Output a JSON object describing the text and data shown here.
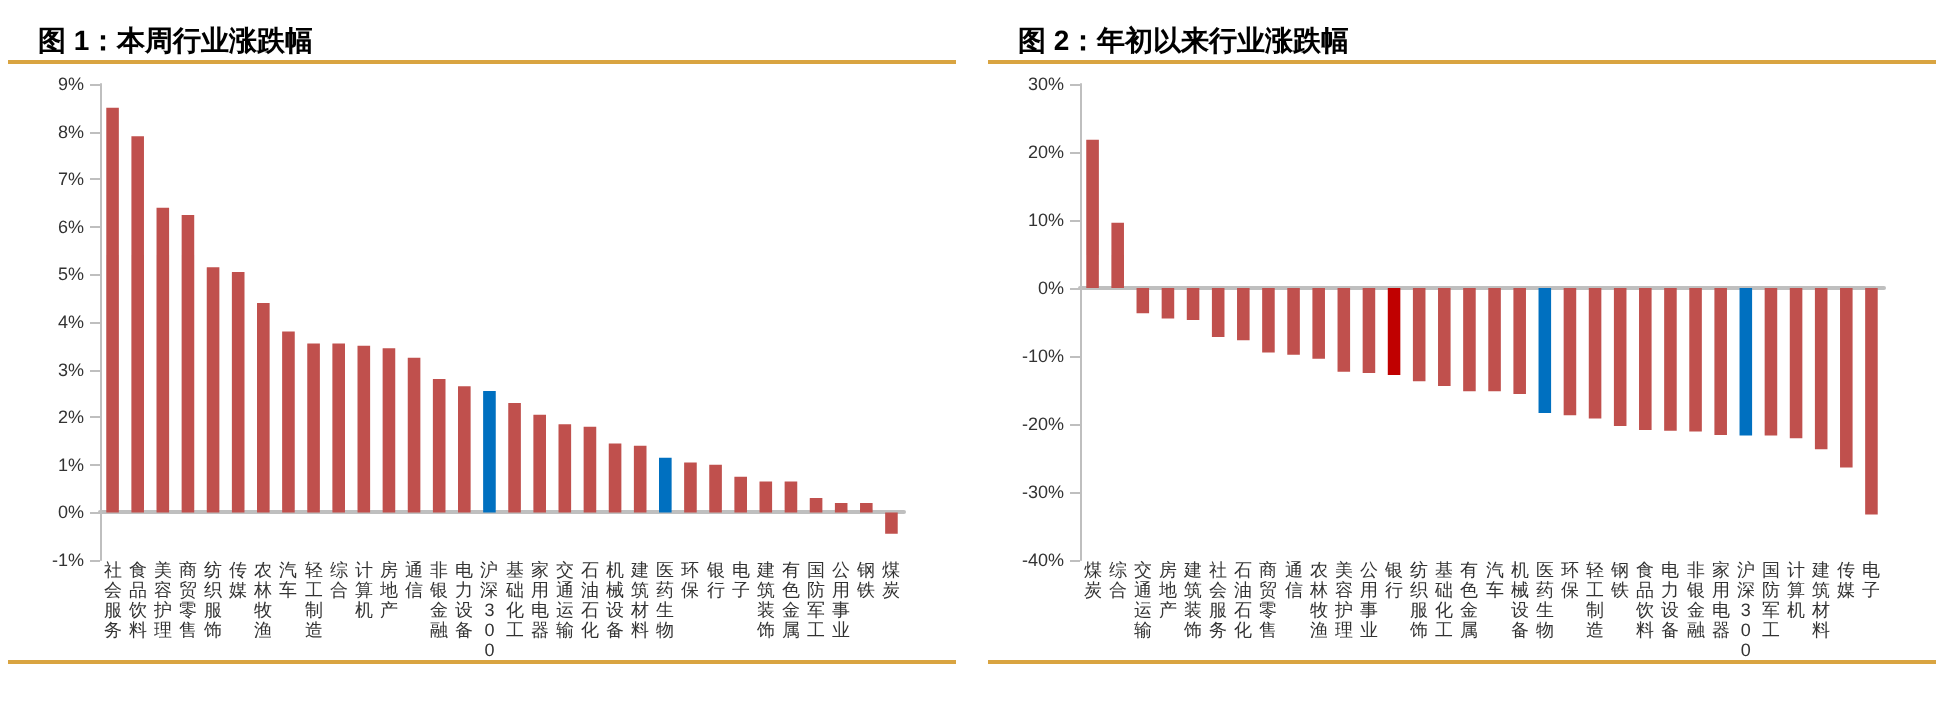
{
  "chart_data": [
    {
      "type": "bar",
      "title": "图 1：本周行业涨跌幅",
      "categories": [
        "社会服务",
        "食品饮料",
        "美容护理",
        "商贸零售",
        "纺织服饰",
        "传媒",
        "农林牧渔",
        "汽车",
        "轻工制造",
        "综合",
        "计算机",
        "房地产",
        "通信",
        "非银金融",
        "电力设备",
        "沪深300",
        "基础化工",
        "家用电器",
        "交通运输",
        "石油石化",
        "机械设备",
        "建筑材料",
        "医药生物",
        "环保",
        "银行",
        "电子",
        "建筑装饰",
        "有色金属",
        "国防军工",
        "公用事业",
        "钢铁",
        "煤炭"
      ],
      "values": [
        8.5,
        7.9,
        6.4,
        6.25,
        5.15,
        5.05,
        4.4,
        3.8,
        3.55,
        3.55,
        3.5,
        3.45,
        3.25,
        2.8,
        2.65,
        2.55,
        2.3,
        2.05,
        1.85,
        1.8,
        1.45,
        1.4,
        1.15,
        1.05,
        1.0,
        0.75,
        0.65,
        0.65,
        0.3,
        0.2,
        0.2,
        -0.45
      ],
      "colors": [
        "#c0504d",
        "#c0504d",
        "#c0504d",
        "#c0504d",
        "#c0504d",
        "#c0504d",
        "#c0504d",
        "#c0504d",
        "#c0504d",
        "#c0504d",
        "#c0504d",
        "#c0504d",
        "#c0504d",
        "#c0504d",
        "#c0504d",
        "#0070c0",
        "#c0504d",
        "#c0504d",
        "#c0504d",
        "#c0504d",
        "#c0504d",
        "#c0504d",
        "#0070c0",
        "#c0504d",
        "#c0504d",
        "#c0504d",
        "#c0504d",
        "#c0504d",
        "#c0504d",
        "#c0504d",
        "#c0504d",
        "#c0504d"
      ],
      "ylim": [
        -1,
        9
      ],
      "yticks": [
        {
          "value": -1,
          "label": "-1%"
        },
        {
          "value": 0,
          "label": "0%"
        },
        {
          "value": 1,
          "label": "1%"
        },
        {
          "value": 2,
          "label": "2%"
        },
        {
          "value": 3,
          "label": "3%"
        },
        {
          "value": 4,
          "label": "4%"
        },
        {
          "value": 5,
          "label": "5%"
        },
        {
          "value": 6,
          "label": "6%"
        },
        {
          "value": 7,
          "label": "7%"
        },
        {
          "value": 8,
          "label": "8%"
        },
        {
          "value": 9,
          "label": "9%"
        }
      ]
    },
    {
      "type": "bar",
      "title": "图 2：年初以来行业涨跌幅",
      "categories": [
        "煤炭",
        "综合",
        "交通运输",
        "房地产",
        "建筑装饰",
        "社会服务",
        "石油石化",
        "商贸零售",
        "通信",
        "农林牧渔",
        "美容护理",
        "公用事业",
        "银行",
        "纺织服饰",
        "基础化工",
        "有色金属",
        "汽车",
        "机械设备",
        "医药生物",
        "环保",
        "轻工制造",
        "钢铁",
        "食品饮料",
        "电力设备",
        "非银金融",
        "家用电器",
        "沪深300",
        "国防军工",
        "计算机",
        "建筑材料",
        "传媒",
        "电子"
      ],
      "values": [
        21.8,
        9.6,
        -3.7,
        -4.5,
        -4.7,
        -7.2,
        -7.7,
        -9.5,
        -9.8,
        -10.4,
        -12.3,
        -12.5,
        -12.8,
        -13.7,
        -14.4,
        -15.2,
        -15.2,
        -15.6,
        -18.4,
        -18.7,
        -19.2,
        -20.3,
        -20.9,
        -21.0,
        -21.1,
        -21.6,
        -21.7,
        -21.7,
        -22.1,
        -23.7,
        -26.4,
        -33.3
      ],
      "colors": [
        "#c0504d",
        "#c0504d",
        "#c0504d",
        "#c0504d",
        "#c0504d",
        "#c0504d",
        "#c0504d",
        "#c0504d",
        "#c0504d",
        "#c0504d",
        "#c0504d",
        "#c0504d",
        "#c00000",
        "#c0504d",
        "#c0504d",
        "#c0504d",
        "#c0504d",
        "#c0504d",
        "#0070c0",
        "#c0504d",
        "#c0504d",
        "#c0504d",
        "#c0504d",
        "#c0504d",
        "#c0504d",
        "#c0504d",
        "#0070c0",
        "#c0504d",
        "#c0504d",
        "#c0504d",
        "#c0504d",
        "#c0504d"
      ],
      "ylim": [
        -40,
        30
      ],
      "yticks": [
        {
          "value": -40,
          "label": "-40%"
        },
        {
          "value": -30,
          "label": "-30%"
        },
        {
          "value": -20,
          "label": "-20%"
        },
        {
          "value": -10,
          "label": "-10%"
        },
        {
          "value": 0,
          "label": "0%"
        },
        {
          "value": 10,
          "label": "10%"
        },
        {
          "value": 20,
          "label": "20%"
        },
        {
          "value": 30,
          "label": "30%"
        }
      ]
    }
  ]
}
